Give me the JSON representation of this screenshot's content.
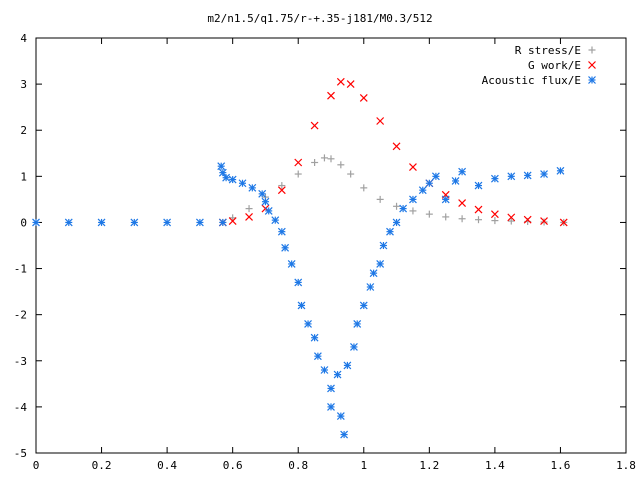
{
  "chart_data": {
    "type": "scatter",
    "title": "m2/n1.5/q1.75/r-+.35-j181/M0.3/512",
    "xlabel": "",
    "ylabel": "",
    "xlim": [
      0,
      1.8
    ],
    "ylim": [
      -5,
      4
    ],
    "x_ticks": [
      "0",
      "0.2",
      "0.4",
      "0.6",
      "0.8",
      "1",
      "1.2",
      "1.4",
      "1.6",
      "1.8"
    ],
    "y_ticks": [
      "-5",
      "-4",
      "-3",
      "-2",
      "-1",
      "0",
      "1",
      "2",
      "3",
      "4"
    ],
    "grid": false,
    "legend_position": "top-right",
    "series": [
      {
        "name": "R stress/E",
        "marker": "plus",
        "color": "#a0a0a0",
        "points": [
          [
            0.57,
            0.0
          ],
          [
            0.6,
            0.1
          ],
          [
            0.65,
            0.3
          ],
          [
            0.7,
            0.55
          ],
          [
            0.75,
            0.8
          ],
          [
            0.8,
            1.05
          ],
          [
            0.85,
            1.3
          ],
          [
            0.88,
            1.4
          ],
          [
            0.9,
            1.38
          ],
          [
            0.93,
            1.25
          ],
          [
            0.96,
            1.05
          ],
          [
            1.0,
            0.75
          ],
          [
            1.05,
            0.5
          ],
          [
            1.1,
            0.35
          ],
          [
            1.15,
            0.25
          ],
          [
            1.2,
            0.18
          ],
          [
            1.25,
            0.12
          ],
          [
            1.3,
            0.08
          ],
          [
            1.35,
            0.06
          ],
          [
            1.4,
            0.04
          ],
          [
            1.45,
            0.03
          ],
          [
            1.5,
            0.02
          ],
          [
            1.55,
            0.01
          ],
          [
            1.61,
            0.0
          ]
        ]
      },
      {
        "name": "G work/E",
        "marker": "cross",
        "color": "#ff0000",
        "points": [
          [
            0.57,
            0.0
          ],
          [
            0.6,
            0.03
          ],
          [
            0.65,
            0.12
          ],
          [
            0.7,
            0.3
          ],
          [
            0.75,
            0.7
          ],
          [
            0.8,
            1.3
          ],
          [
            0.85,
            2.1
          ],
          [
            0.9,
            2.75
          ],
          [
            0.93,
            3.05
          ],
          [
            0.96,
            3.0
          ],
          [
            1.0,
            2.7
          ],
          [
            1.05,
            2.2
          ],
          [
            1.1,
            1.65
          ],
          [
            1.15,
            1.2
          ],
          [
            1.2,
            0.85
          ],
          [
            1.25,
            0.6
          ],
          [
            1.3,
            0.42
          ],
          [
            1.35,
            0.28
          ],
          [
            1.4,
            0.18
          ],
          [
            1.45,
            0.11
          ],
          [
            1.5,
            0.06
          ],
          [
            1.55,
            0.03
          ],
          [
            1.61,
            0.0
          ]
        ]
      },
      {
        "name": "Acoustic flux/E",
        "marker": "star",
        "color": "#1e78e6",
        "points": [
          [
            0.0,
            0.0
          ],
          [
            0.1,
            0.0
          ],
          [
            0.2,
            0.0
          ],
          [
            0.3,
            0.0
          ],
          [
            0.4,
            0.0
          ],
          [
            0.5,
            0.0
          ],
          [
            0.57,
            0.0
          ],
          [
            0.565,
            1.22
          ],
          [
            0.57,
            1.08
          ],
          [
            0.58,
            0.97
          ],
          [
            0.6,
            0.93
          ],
          [
            0.63,
            0.85
          ],
          [
            0.66,
            0.75
          ],
          [
            0.69,
            0.62
          ],
          [
            0.7,
            0.45
          ],
          [
            0.71,
            0.25
          ],
          [
            0.73,
            0.05
          ],
          [
            0.75,
            -0.2
          ],
          [
            0.76,
            -0.55
          ],
          [
            0.78,
            -0.9
          ],
          [
            0.8,
            -1.3
          ],
          [
            0.81,
            -1.8
          ],
          [
            0.83,
            -2.2
          ],
          [
            0.85,
            -2.5
          ],
          [
            0.86,
            -2.9
          ],
          [
            0.88,
            -3.2
          ],
          [
            0.9,
            -3.6
          ],
          [
            0.9,
            -4.0
          ],
          [
            0.92,
            -3.3
          ],
          [
            0.93,
            -4.2
          ],
          [
            0.94,
            -4.6
          ],
          [
            0.95,
            -3.1
          ],
          [
            0.97,
            -2.7
          ],
          [
            0.98,
            -2.2
          ],
          [
            1.0,
            -1.8
          ],
          [
            1.02,
            -1.4
          ],
          [
            1.03,
            -1.1
          ],
          [
            1.05,
            -0.9
          ],
          [
            1.06,
            -0.5
          ],
          [
            1.08,
            -0.2
          ],
          [
            1.1,
            0.0
          ],
          [
            1.12,
            0.3
          ],
          [
            1.15,
            0.5
          ],
          [
            1.18,
            0.7
          ],
          [
            1.2,
            0.85
          ],
          [
            1.22,
            1.0
          ],
          [
            1.25,
            0.5
          ],
          [
            1.28,
            0.9
          ],
          [
            1.3,
            1.1
          ],
          [
            1.35,
            0.8
          ],
          [
            1.4,
            0.95
          ],
          [
            1.45,
            1.0
          ],
          [
            1.5,
            1.02
          ],
          [
            1.55,
            1.05
          ],
          [
            1.6,
            1.12
          ]
        ]
      }
    ]
  }
}
